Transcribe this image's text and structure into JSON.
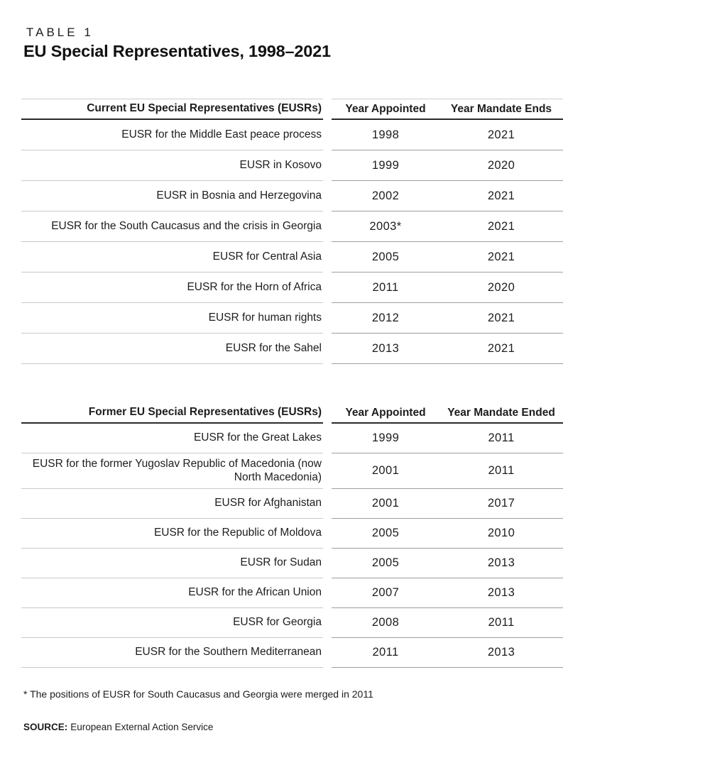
{
  "page": {
    "table_label": "TABLE 1",
    "title": "EU Special Representatives, 1998–2021",
    "footnote": "* The positions of EUSR for South Caucasus and Georgia were merged in 2011",
    "source_label": "SOURCE:",
    "source_text": "European External Action Service"
  },
  "colors": {
    "text": "#1d1d1b",
    "header_rule": "#2a2a2a",
    "row_rule_name_column": "#c9c9c9",
    "row_rule_year_columns": "#9e9e9e"
  },
  "tables": [
    {
      "headers": [
        "Current EU Special Representatives (EUSRs)",
        "Year Appointed",
        "Year Mandate Ends"
      ],
      "rows": [
        [
          "EUSR for the Middle East peace process",
          "1998",
          "2021"
        ],
        [
          "EUSR in Kosovo",
          "1999",
          "2020"
        ],
        [
          "EUSR in Bosnia and Herzegovina",
          "2002",
          "2021"
        ],
        [
          "EUSR for the South Caucasus and the crisis in Georgia",
          "2003*",
          "2021"
        ],
        [
          "EUSR for Central Asia",
          "2005",
          "2021"
        ],
        [
          "EUSR for the Horn of Africa",
          "2011",
          "2020"
        ],
        [
          "EUSR for human rights",
          "2012",
          "2021"
        ],
        [
          "EUSR for the Sahel",
          "2013",
          "2021"
        ]
      ]
    },
    {
      "headers": [
        "Former EU Special Representatives (EUSRs)",
        "Year Appointed",
        "Year Mandate Ended"
      ],
      "rows": [
        [
          "EUSR for the Great Lakes",
          "1999",
          "2011"
        ],
        [
          "EUSR for the former Yugoslav Republic of Macedonia (now North Macedonia)",
          "2001",
          "2011"
        ],
        [
          "EUSR for Afghanistan",
          "2001",
          "2017"
        ],
        [
          "EUSR for the Republic of Moldova",
          "2005",
          "2010"
        ],
        [
          "EUSR for Sudan",
          "2005",
          "2013"
        ],
        [
          "EUSR for the African Union",
          "2007",
          "2013"
        ],
        [
          "EUSR for Georgia",
          "2008",
          "2011"
        ],
        [
          "EUSR for the Southern Mediterranean",
          "2011",
          "2013"
        ]
      ]
    }
  ]
}
